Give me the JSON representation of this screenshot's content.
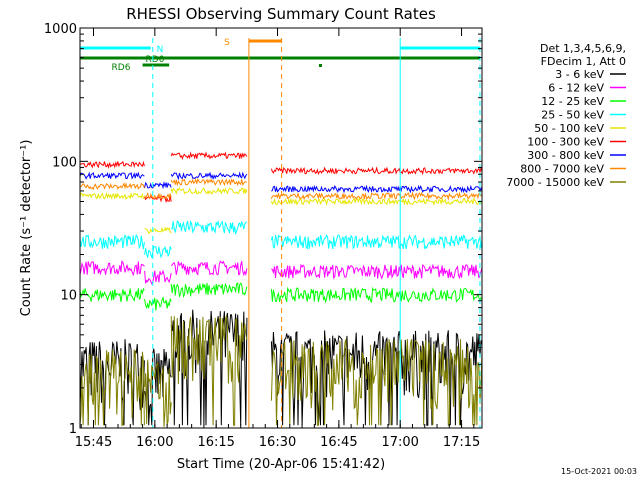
{
  "chart_data": {
    "type": "line",
    "title": "RHESSI Observing Summary Count Rates",
    "xlabel": "Start Time (20-Apr-06 15:41:42)",
    "ylabel": "Count Rate (s⁻¹ detector⁻¹)",
    "x_range": [
      "15:41:42",
      "17:20:00"
    ],
    "y_scale": "log",
    "ylim": [
      1,
      1000
    ],
    "x_ticks": [
      "15:45",
      "16:00",
      "16:15",
      "16:30",
      "16:45",
      "17:00",
      "17:15"
    ],
    "y_ticks": [
      "1",
      "10",
      "100",
      "1000"
    ],
    "legend_header": [
      "Det 1,3,4,5,6,9,",
      "FDecim 1, Att 0"
    ],
    "series": [
      {
        "name": "3 - 6 keV",
        "color": "#000000",
        "values": {
          "before": 3,
          "mid": 5,
          "after": 3.5
        }
      },
      {
        "name": "6 - 12 keV",
        "color": "#ff00ff",
        "values": {
          "before": 16,
          "mid": 16,
          "after": 15
        }
      },
      {
        "name": "12 - 25 keV",
        "color": "#00ff00",
        "values": {
          "before": 10,
          "mid": 11,
          "after": 10
        }
      },
      {
        "name": "25 - 50 keV",
        "color": "#00ffff",
        "values": {
          "before": 25,
          "mid": 32,
          "after": 25
        }
      },
      {
        "name": "50 - 100 keV",
        "color": "#e6e600",
        "values": {
          "before": 55,
          "mid": 60,
          "after": 50
        }
      },
      {
        "name": "100 - 300 keV",
        "color": "#ff0000",
        "values": {
          "before": 95,
          "mid": 110,
          "after": 85
        }
      },
      {
        "name": "300 - 800 keV",
        "color": "#0000ff",
        "values": {
          "before": 78,
          "mid": 78,
          "after": 62
        }
      },
      {
        "name": "800 - 7000 keV",
        "color": "#ff8800",
        "values": {
          "before": 65,
          "mid": 70,
          "after": 55
        }
      },
      {
        "name": "7000 - 15000 keV",
        "color": "#808000",
        "values": {
          "before": 2.5,
          "mid": 4.5,
          "after": 3
        }
      }
    ],
    "flags": [
      {
        "label": "N",
        "color": "#00ffff"
      },
      {
        "label": "RD0",
        "color": "#008000"
      },
      {
        "label": "RD6",
        "color": "#008000"
      },
      {
        "label": "S",
        "color": "#ff8800"
      }
    ]
  },
  "footer_date": "15-Oct-2021 00:03"
}
